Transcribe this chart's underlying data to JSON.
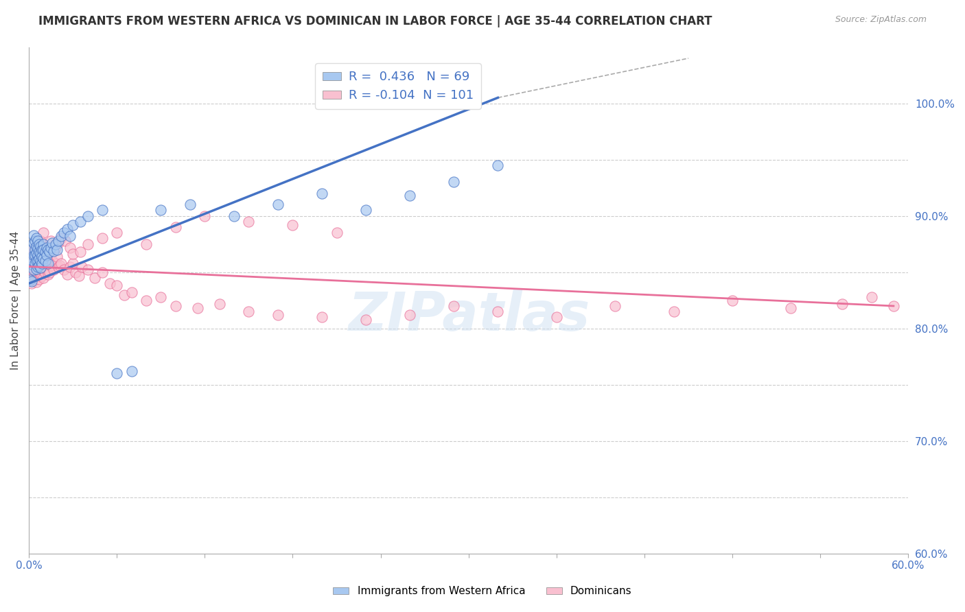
{
  "title": "IMMIGRANTS FROM WESTERN AFRICA VS DOMINICAN IN LABOR FORCE | AGE 35-44 CORRELATION CHART",
  "source": "Source: ZipAtlas.com",
  "ylabel": "In Labor Force | Age 35-44",
  "xlim": [
    0.0,
    0.6
  ],
  "ylim": [
    0.6,
    1.05
  ],
  "blue_color": "#A8C8F0",
  "pink_color": "#F9C0D0",
  "blue_line_color": "#4472C4",
  "pink_line_color": "#E8709A",
  "R_blue": 0.436,
  "N_blue": 69,
  "R_pink": -0.104,
  "N_pink": 101,
  "legend_label_blue": "Immigrants from Western Africa",
  "legend_label_pink": "Dominicans",
  "watermark": "ZIPatlas",
  "blue_x": [
    0.001,
    0.001,
    0.002,
    0.002,
    0.002,
    0.003,
    0.003,
    0.003,
    0.003,
    0.004,
    0.004,
    0.004,
    0.004,
    0.005,
    0.005,
    0.005,
    0.005,
    0.005,
    0.006,
    0.006,
    0.006,
    0.006,
    0.006,
    0.007,
    0.007,
    0.007,
    0.007,
    0.008,
    0.008,
    0.008,
    0.008,
    0.009,
    0.009,
    0.009,
    0.01,
    0.01,
    0.01,
    0.011,
    0.011,
    0.012,
    0.012,
    0.013,
    0.013,
    0.014,
    0.015,
    0.016,
    0.017,
    0.018,
    0.019,
    0.02,
    0.022,
    0.024,
    0.026,
    0.028,
    0.03,
    0.035,
    0.04,
    0.05,
    0.06,
    0.07,
    0.09,
    0.11,
    0.14,
    0.17,
    0.2,
    0.23,
    0.26,
    0.29,
    0.32
  ],
  "blue_y": [
    0.843,
    0.857,
    0.861,
    0.87,
    0.842,
    0.876,
    0.852,
    0.865,
    0.883,
    0.878,
    0.87,
    0.865,
    0.858,
    0.88,
    0.873,
    0.867,
    0.86,
    0.853,
    0.878,
    0.871,
    0.865,
    0.86,
    0.855,
    0.875,
    0.868,
    0.862,
    0.856,
    0.873,
    0.867,
    0.86,
    0.854,
    0.87,
    0.864,
    0.858,
    0.875,
    0.87,
    0.862,
    0.868,
    0.86,
    0.872,
    0.865,
    0.87,
    0.858,
    0.868,
    0.872,
    0.876,
    0.869,
    0.875,
    0.87,
    0.878,
    0.882,
    0.885,
    0.888,
    0.882,
    0.892,
    0.895,
    0.9,
    0.905,
    0.76,
    0.762,
    0.905,
    0.91,
    0.9,
    0.91,
    0.92,
    0.905,
    0.918,
    0.93,
    0.945
  ],
  "pink_x": [
    0.001,
    0.001,
    0.002,
    0.002,
    0.002,
    0.003,
    0.003,
    0.003,
    0.004,
    0.004,
    0.004,
    0.005,
    0.005,
    0.005,
    0.005,
    0.006,
    0.006,
    0.006,
    0.007,
    0.007,
    0.007,
    0.008,
    0.008,
    0.008,
    0.009,
    0.009,
    0.009,
    0.01,
    0.01,
    0.01,
    0.011,
    0.011,
    0.012,
    0.012,
    0.013,
    0.013,
    0.014,
    0.014,
    0.015,
    0.016,
    0.017,
    0.018,
    0.019,
    0.02,
    0.021,
    0.022,
    0.024,
    0.026,
    0.028,
    0.03,
    0.032,
    0.034,
    0.036,
    0.04,
    0.045,
    0.05,
    0.055,
    0.06,
    0.065,
    0.07,
    0.08,
    0.09,
    0.1,
    0.115,
    0.13,
    0.15,
    0.17,
    0.2,
    0.23,
    0.26,
    0.29,
    0.32,
    0.36,
    0.4,
    0.44,
    0.48,
    0.52,
    0.555,
    0.575,
    0.59,
    0.005,
    0.008,
    0.01,
    0.012,
    0.015,
    0.018,
    0.02,
    0.022,
    0.025,
    0.028,
    0.03,
    0.035,
    0.04,
    0.05,
    0.06,
    0.08,
    0.1,
    0.12,
    0.15,
    0.18,
    0.21
  ],
  "pink_y": [
    0.845,
    0.858,
    0.852,
    0.865,
    0.84,
    0.87,
    0.858,
    0.847,
    0.863,
    0.855,
    0.843,
    0.865,
    0.858,
    0.85,
    0.841,
    0.86,
    0.853,
    0.847,
    0.858,
    0.85,
    0.844,
    0.863,
    0.855,
    0.848,
    0.86,
    0.853,
    0.847,
    0.858,
    0.851,
    0.845,
    0.856,
    0.849,
    0.86,
    0.852,
    0.856,
    0.848,
    0.858,
    0.85,
    0.856,
    0.86,
    0.852,
    0.858,
    0.864,
    0.855,
    0.856,
    0.858,
    0.852,
    0.848,
    0.855,
    0.858,
    0.85,
    0.847,
    0.855,
    0.852,
    0.845,
    0.85,
    0.84,
    0.838,
    0.83,
    0.832,
    0.825,
    0.828,
    0.82,
    0.818,
    0.822,
    0.815,
    0.812,
    0.81,
    0.808,
    0.812,
    0.82,
    0.815,
    0.81,
    0.82,
    0.815,
    0.825,
    0.818,
    0.822,
    0.828,
    0.82,
    0.87,
    0.878,
    0.885,
    0.872,
    0.878,
    0.872,
    0.876,
    0.88,
    0.878,
    0.872,
    0.866,
    0.868,
    0.875,
    0.88,
    0.885,
    0.875,
    0.89,
    0.9,
    0.895,
    0.892,
    0.885
  ],
  "blue_trend_x0": 0.0,
  "blue_trend_y0": 0.84,
  "blue_trend_x1": 0.32,
  "blue_trend_y1": 1.005,
  "pink_trend_x0": 0.0,
  "pink_trend_y0": 0.855,
  "pink_trend_x1": 0.59,
  "pink_trend_y1": 0.82
}
